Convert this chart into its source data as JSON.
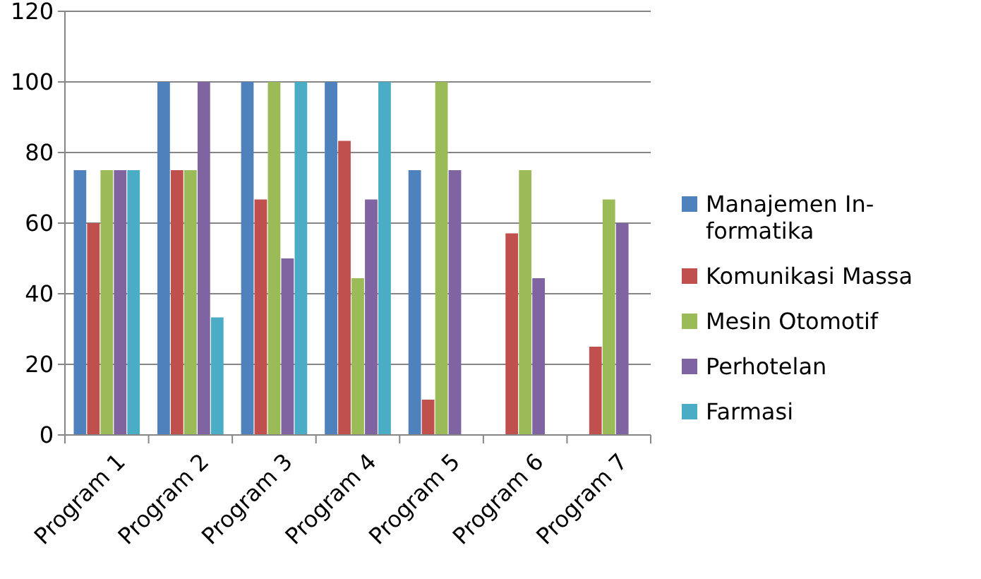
{
  "chart_data": {
    "type": "bar",
    "categories": [
      "Program 1",
      "Program 2",
      "Program 3",
      "Program 4",
      "Program 5",
      "Program 6",
      "Program 7"
    ],
    "series": [
      {
        "name": "Manajemen In-formatika",
        "color": "#4f81bd",
        "values": [
          75,
          100,
          100,
          100,
          75,
          0,
          0
        ]
      },
      {
        "name": "Komunikasi Massa",
        "color": "#c0504d",
        "values": [
          60,
          75,
          66.7,
          83.3,
          10,
          57.1,
          25
        ]
      },
      {
        "name": "Mesin Otomotif",
        "color": "#9bbb59",
        "values": [
          75,
          75,
          100,
          44.4,
          100,
          75,
          66.7
        ]
      },
      {
        "name": "Perhotelan",
        "color": "#8064a2",
        "values": [
          75,
          100,
          50,
          66.7,
          75,
          44.4,
          60
        ]
      },
      {
        "name": "Farmasi",
        "color": "#4bacc6",
        "values": [
          75,
          33.3,
          100,
          100,
          0,
          0,
          0
        ]
      }
    ],
    "ylim": [
      0,
      120
    ],
    "yticks": [
      0,
      20,
      40,
      60,
      80,
      100,
      120
    ],
    "grid": "y",
    "legend": "right"
  }
}
